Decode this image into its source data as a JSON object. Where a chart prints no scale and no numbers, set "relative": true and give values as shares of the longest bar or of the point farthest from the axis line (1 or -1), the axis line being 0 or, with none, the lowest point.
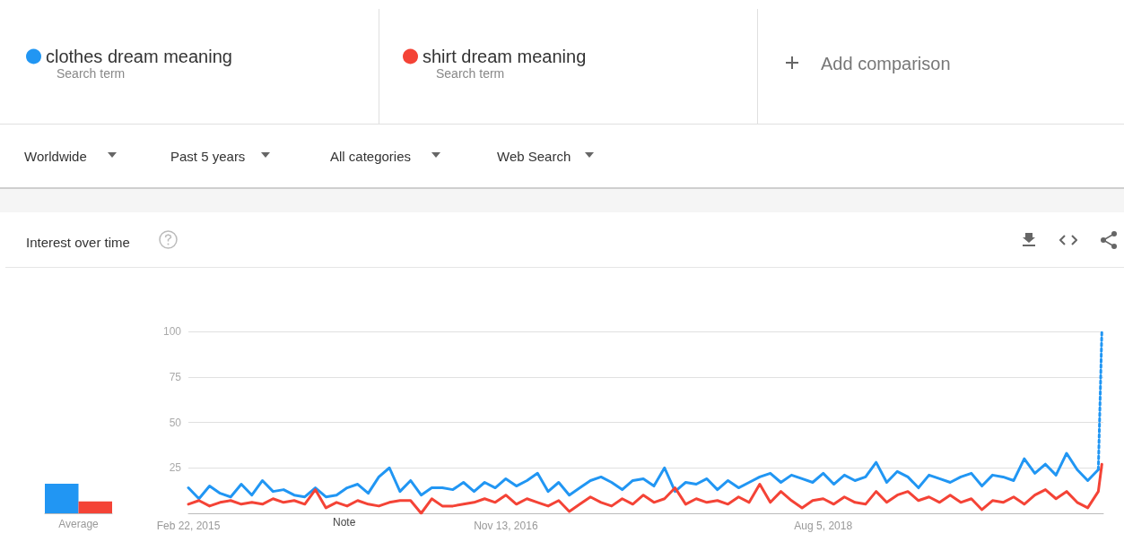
{
  "chart_data": [
    {
      "type": "bar",
      "relative": true,
      "categories": [
        "Average"
      ],
      "series": [
        {
          "color": "#2196f3",
          "values": [
            1
          ]
        },
        {
          "color": "#f44336",
          "values": [
            0.4
          ]
        }
      ]
    },
    {
      "type": "line",
      "title": "Interest over time",
      "legend": "top",
      "grid": "y",
      "marker": "none",
      "line_style": "solid",
      "annotations": [
        "Search term",
        "Search term",
        "Add comparison",
        "Worldwide",
        "Past 5 years",
        "All categories",
        "Web Search",
        "Note"
      ],
      "ylim": [
        0,
        100
      ],
      "yticks": [
        25,
        50,
        75,
        100
      ],
      "xlim": [
        "2015-02-22",
        "2020-02-12"
      ],
      "xticks": [
        {
          "value": "2015-02-22",
          "label": "Feb 22, 2015"
        },
        {
          "value": "2016-11-13",
          "label": "Nov 13, 2016"
        },
        {
          "value": "2018-08-05",
          "label": "Aug 5, 2018"
        }
      ],
      "x": [
        "2015-02-22",
        "2015-03-15",
        "2015-04-05",
        "2015-04-26",
        "2015-05-17",
        "2015-06-07",
        "2015-06-28",
        "2015-07-19",
        "2015-08-09",
        "2015-08-30",
        "2015-09-20",
        "2015-10-11",
        "2015-11-01",
        "2015-11-22",
        "2015-12-13",
        "2016-01-03",
        "2016-01-24",
        "2016-02-14",
        "2016-03-06",
        "2016-03-27",
        "2016-04-17",
        "2016-05-08",
        "2016-05-29",
        "2016-06-19",
        "2016-07-10",
        "2016-07-31",
        "2016-08-21",
        "2016-09-11",
        "2016-10-02",
        "2016-10-23",
        "2016-11-13",
        "2016-12-04",
        "2016-12-25",
        "2017-01-15",
        "2017-02-05",
        "2017-02-26",
        "2017-03-19",
        "2017-04-09",
        "2017-04-30",
        "2017-05-21",
        "2017-06-11",
        "2017-07-02",
        "2017-07-23",
        "2017-08-13",
        "2017-09-03",
        "2017-09-24",
        "2017-10-15",
        "2017-11-05",
        "2017-11-26",
        "2017-12-17",
        "2018-01-07",
        "2018-01-28",
        "2018-02-18",
        "2018-03-11",
        "2018-04-01",
        "2018-04-22",
        "2018-05-13",
        "2018-06-03",
        "2018-06-24",
        "2018-07-15",
        "2018-08-05",
        "2018-08-26",
        "2018-09-16",
        "2018-10-07",
        "2018-10-28",
        "2018-11-18",
        "2018-12-09",
        "2018-12-30",
        "2019-01-20",
        "2019-02-10",
        "2019-03-03",
        "2019-03-24",
        "2019-04-14",
        "2019-05-05",
        "2019-05-26",
        "2019-06-16",
        "2019-07-07",
        "2019-07-28",
        "2019-08-18",
        "2019-09-08",
        "2019-09-29",
        "2019-10-20",
        "2019-11-10",
        "2019-12-01",
        "2019-12-22",
        "2020-01-12",
        "2020-02-02",
        "2020-02-09"
      ],
      "series": [
        {
          "name": "clothes dream meaning",
          "color": "#2196f3",
          "values": [
            14,
            8,
            15,
            11,
            9,
            16,
            10,
            18,
            12,
            13,
            10,
            9,
            14,
            9,
            10,
            14,
            16,
            11,
            20,
            25,
            12,
            18,
            10,
            14,
            14,
            13,
            17,
            12,
            17,
            14,
            19,
            15,
            18,
            22,
            12,
            17,
            10,
            14,
            18,
            20,
            17,
            13,
            18,
            19,
            15,
            25,
            12,
            17,
            16,
            19,
            13,
            18,
            14,
            17,
            20,
            22,
            17,
            21,
            19,
            17,
            22,
            16,
            21,
            18,
            20,
            28,
            17,
            23,
            20,
            14,
            21,
            19,
            17,
            20,
            22,
            15,
            21,
            20,
            18,
            30,
            22,
            27,
            21,
            33,
            24,
            18,
            24,
            null
          ]
        },
        {
          "name": "shirt dream meaning",
          "color": "#f44336",
          "values": [
            5,
            7,
            4,
            6,
            7,
            5,
            6,
            5,
            8,
            6,
            7,
            5,
            13,
            3,
            6,
            4,
            7,
            5,
            4,
            6,
            7,
            7,
            0,
            8,
            4,
            4,
            5,
            6,
            8,
            6,
            10,
            5,
            8,
            6,
            4,
            7,
            1,
            5,
            9,
            6,
            4,
            8,
            5,
            10,
            6,
            8,
            14,
            5,
            8,
            6,
            7,
            5,
            9,
            6,
            16,
            6,
            12,
            7,
            3,
            7,
            8,
            5,
            9,
            6,
            5,
            12,
            6,
            10,
            12,
            7,
            9,
            6,
            10,
            6,
            8,
            2,
            7,
            6,
            9,
            5,
            10,
            13,
            8,
            12,
            6,
            3,
            12,
            27
          ]
        },
        {
          "color": "#2196f3",
          "line_style": "dotted",
          "x": [
            "2020-02-02",
            "2020-02-09"
          ],
          "values": [
            24,
            100
          ]
        }
      ]
    }
  ]
}
